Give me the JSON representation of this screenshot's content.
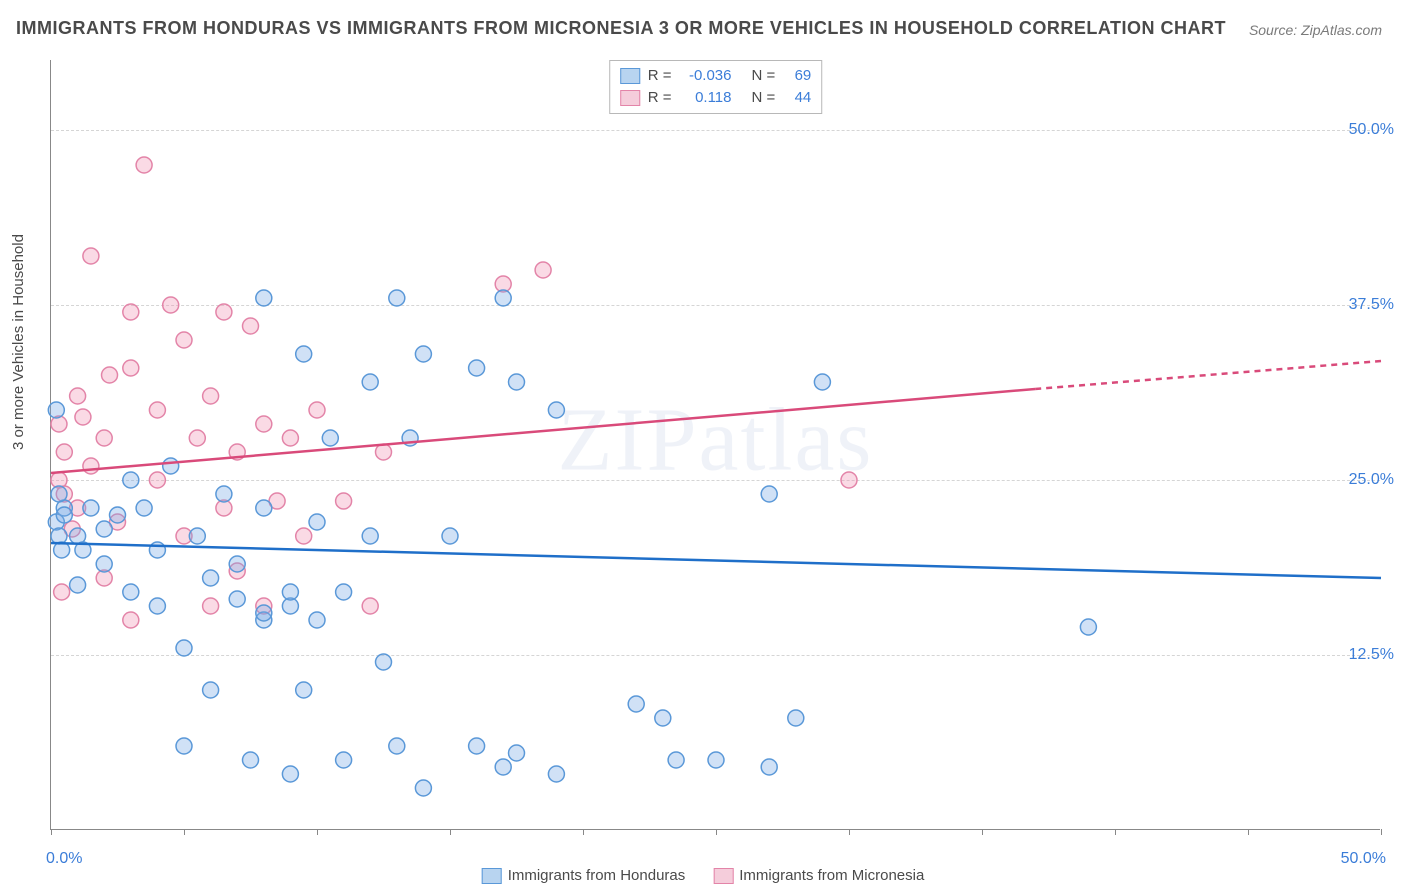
{
  "title": "IMMIGRANTS FROM HONDURAS VS IMMIGRANTS FROM MICRONESIA 3 OR MORE VEHICLES IN HOUSEHOLD CORRELATION CHART",
  "source": "Source: ZipAtlas.com",
  "yaxis_title": "3 or more Vehicles in Household",
  "watermark": "ZIPatlas",
  "chart": {
    "type": "scatter",
    "xlim": [
      0,
      50
    ],
    "ylim": [
      0,
      55
    ],
    "y_gridlines": [
      12.5,
      25.0,
      37.5,
      50.0
    ],
    "y_tick_labels": [
      "12.5%",
      "25.0%",
      "37.5%",
      "50.0%"
    ],
    "x_ticks": [
      0,
      5,
      10,
      15,
      20,
      25,
      30,
      35,
      40,
      45,
      50
    ],
    "x_tick_labels_left": "0.0%",
    "x_tick_labels_right": "50.0%",
    "grid_color": "#d5d5d5",
    "axis_color": "#888888",
    "background_color": "#ffffff",
    "tick_label_color": "#3b7dd8",
    "marker_radius": 8,
    "marker_stroke_width": 1.5,
    "trend_line_width": 2.5
  },
  "series": {
    "honduras": {
      "label": "Immigrants from Honduras",
      "color_fill": "rgba(120,170,230,0.35)",
      "color_stroke": "#5a98d8",
      "swatch_fill": "#b8d4f0",
      "swatch_stroke": "#5a98d8",
      "trend_color": "#1f6fc9",
      "R": "-0.036",
      "N": "69",
      "trend_start_y": 20.5,
      "trend_end_y": 18.0,
      "points": [
        [
          0.2,
          22.0
        ],
        [
          0.3,
          21.0
        ],
        [
          0.5,
          23.0
        ],
        [
          0.3,
          24.0
        ],
        [
          0.4,
          20.0
        ],
        [
          0.5,
          22.5
        ],
        [
          1.0,
          21.0
        ],
        [
          1.2,
          20.0
        ],
        [
          1.5,
          23.0
        ],
        [
          2.0,
          19.0
        ],
        [
          2.0,
          21.5
        ],
        [
          2.5,
          22.5
        ],
        [
          3.0,
          17.0
        ],
        [
          3.0,
          25.0
        ],
        [
          3.5,
          23.0
        ],
        [
          4.0,
          20.0
        ],
        [
          4.0,
          16.0
        ],
        [
          4.5,
          26.0
        ],
        [
          5.0,
          13.0
        ],
        [
          5.0,
          6.0
        ],
        [
          5.5,
          21.0
        ],
        [
          6.0,
          10.0
        ],
        [
          6.0,
          18.0
        ],
        [
          6.5,
          24.0
        ],
        [
          7.0,
          19.0
        ],
        [
          7.0,
          16.5
        ],
        [
          7.5,
          5.0
        ],
        [
          8.0,
          23.0
        ],
        [
          8.0,
          15.0
        ],
        [
          8.0,
          15.5
        ],
        [
          8.0,
          38.0
        ],
        [
          9.0,
          4.0
        ],
        [
          9.0,
          16.0
        ],
        [
          9.0,
          17.0
        ],
        [
          9.5,
          10.0
        ],
        [
          9.5,
          34.0
        ],
        [
          10.0,
          22.0
        ],
        [
          10.0,
          15.0
        ],
        [
          10.5,
          28.0
        ],
        [
          11.0,
          5.0
        ],
        [
          11.0,
          17.0
        ],
        [
          12.0,
          21.0
        ],
        [
          12.0,
          32.0
        ],
        [
          12.5,
          12.0
        ],
        [
          13.0,
          38.0
        ],
        [
          13.0,
          6.0
        ],
        [
          13.5,
          28.0
        ],
        [
          14.0,
          34.0
        ],
        [
          14.0,
          3.0
        ],
        [
          15.0,
          21.0
        ],
        [
          16.0,
          33.0
        ],
        [
          16.0,
          6.0
        ],
        [
          17.0,
          38.0
        ],
        [
          17.0,
          4.5
        ],
        [
          17.5,
          5.5
        ],
        [
          17.5,
          32.0
        ],
        [
          19.0,
          30.0
        ],
        [
          19.0,
          4.0
        ],
        [
          22.0,
          9.0
        ],
        [
          23.0,
          8.0
        ],
        [
          23.5,
          5.0
        ],
        [
          25.0,
          5.0
        ],
        [
          27.0,
          24.0
        ],
        [
          27.0,
          4.5
        ],
        [
          28.0,
          8.0
        ],
        [
          29.0,
          32.0
        ],
        [
          39.0,
          14.5
        ],
        [
          0.2,
          30.0
        ],
        [
          1.0,
          17.5
        ]
      ]
    },
    "micronesia": {
      "label": "Immigrants from Micronesia",
      "color_fill": "rgba(240,150,180,0.35)",
      "color_stroke": "#e384a8",
      "swatch_fill": "#f5cddb",
      "swatch_stroke": "#e384a8",
      "trend_color": "#d94a7a",
      "R": "0.118",
      "N": "44",
      "trend_start_y": 25.5,
      "trend_end_x": 37,
      "trend_end_y": 31.5,
      "trend_dash_end_y": 33.5,
      "points": [
        [
          0.3,
          29.0
        ],
        [
          0.3,
          25.0
        ],
        [
          0.5,
          24.0
        ],
        [
          0.5,
          27.0
        ],
        [
          0.8,
          21.5
        ],
        [
          1.0,
          31.0
        ],
        [
          1.0,
          23.0
        ],
        [
          1.5,
          41.0
        ],
        [
          1.5,
          26.0
        ],
        [
          2.0,
          18.0
        ],
        [
          2.0,
          28.0
        ],
        [
          2.5,
          22.0
        ],
        [
          3.0,
          15.0
        ],
        [
          3.0,
          33.0
        ],
        [
          3.0,
          37.0
        ],
        [
          3.5,
          47.5
        ],
        [
          4.0,
          25.0
        ],
        [
          4.0,
          30.0
        ],
        [
          4.5,
          37.5
        ],
        [
          5.0,
          21.0
        ],
        [
          5.0,
          35.0
        ],
        [
          5.5,
          28.0
        ],
        [
          6.0,
          16.0
        ],
        [
          6.0,
          31.0
        ],
        [
          6.5,
          37.0
        ],
        [
          6.5,
          23.0
        ],
        [
          7.0,
          18.5
        ],
        [
          7.0,
          27.0
        ],
        [
          7.5,
          36.0
        ],
        [
          8.0,
          29.0
        ],
        [
          8.0,
          16.0
        ],
        [
          8.5,
          23.5
        ],
        [
          9.0,
          28.0
        ],
        [
          9.5,
          21.0
        ],
        [
          10.0,
          30.0
        ],
        [
          11.0,
          23.5
        ],
        [
          12.0,
          16.0
        ],
        [
          12.5,
          27.0
        ],
        [
          17.0,
          39.0
        ],
        [
          18.5,
          40.0
        ],
        [
          30.0,
          25.0
        ],
        [
          0.4,
          17.0
        ],
        [
          1.2,
          29.5
        ],
        [
          2.2,
          32.5
        ]
      ]
    }
  }
}
